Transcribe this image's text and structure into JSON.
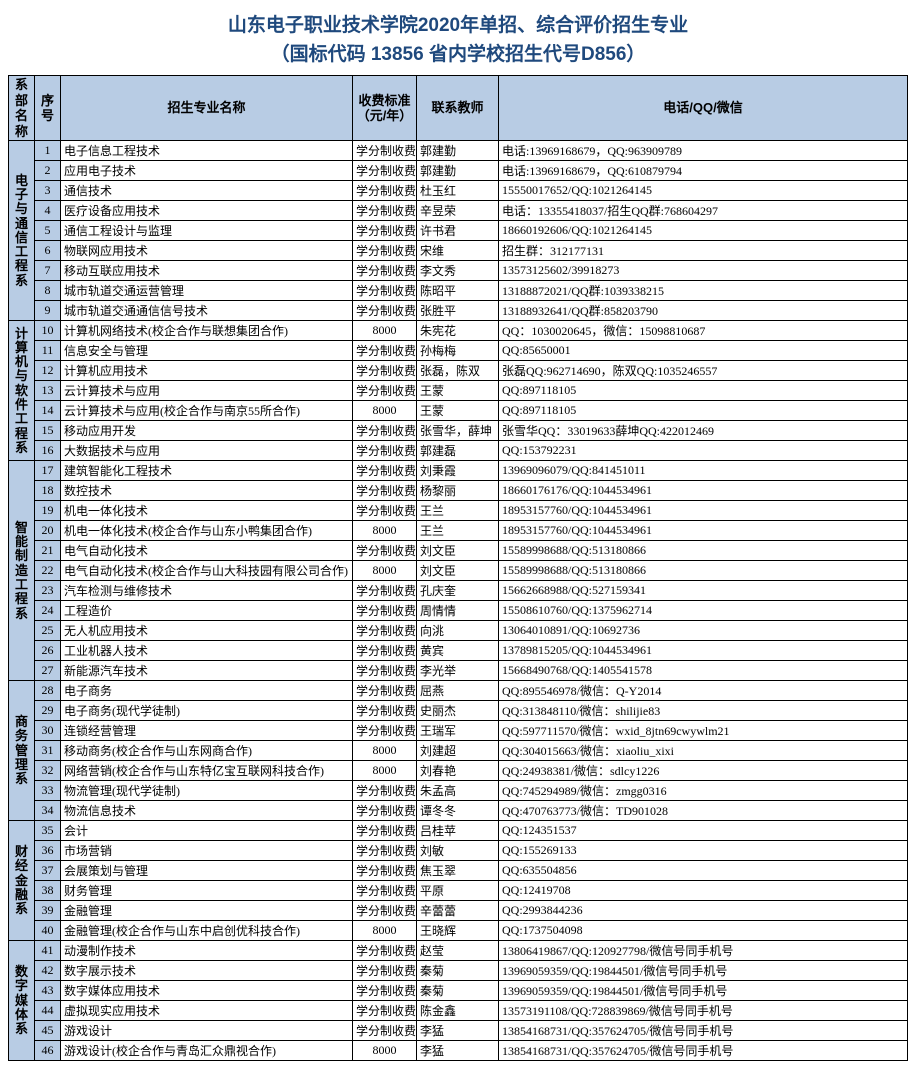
{
  "title_line1": "山东电子职业技术学院2020年单招、综合评价招生专业",
  "title_line2": "（国标代码 13856 省内学校招生代号D856）",
  "headers": {
    "dept": "系部名称",
    "num": "序号",
    "major": "招生专业名称",
    "fee": "收费标准（元/年）",
    "teacher": "联系教师",
    "contact": "电话/QQ/微信"
  },
  "departments": [
    {
      "name": "电子与通信工程系",
      "rows": [
        {
          "n": "1",
          "major": "电子信息工程技术",
          "fee": "学分制收费",
          "teacher": "郭建勤",
          "contact": "电话:13969168679，QQ:963909789"
        },
        {
          "n": "2",
          "major": "应用电子技术",
          "fee": "学分制收费",
          "teacher": "郭建勤",
          "contact": "电话:13969168679，QQ:610879794"
        },
        {
          "n": "3",
          "major": "通信技术",
          "fee": "学分制收费",
          "teacher": "杜玉红",
          "contact": "15550017652/QQ:1021264145"
        },
        {
          "n": "4",
          "major": "医疗设备应用技术",
          "fee": "学分制收费",
          "teacher": "辛昱荣",
          "contact": "电话：13355418037/招生QQ群:768604297"
        },
        {
          "n": "5",
          "major": "通信工程设计与监理",
          "fee": "学分制收费",
          "teacher": "许书君",
          "contact": "18660192606/QQ:1021264145"
        },
        {
          "n": "6",
          "major": "物联网应用技术",
          "fee": "学分制收费",
          "teacher": "宋维",
          "contact": "招生群：312177131"
        },
        {
          "n": "7",
          "major": "移动互联应用技术",
          "fee": "学分制收费",
          "teacher": "李文秀",
          "contact": "13573125602/39918273"
        },
        {
          "n": "8",
          "major": "城市轨道交通运营管理",
          "fee": "学分制收费",
          "teacher": "陈昭平",
          "contact": "13188872021/QQ群:1039338215"
        },
        {
          "n": "9",
          "major": "城市轨道交通通信信号技术",
          "fee": "学分制收费",
          "teacher": "张胜平",
          "contact": "13188932641/QQ群:858203790"
        }
      ]
    },
    {
      "name": "计算机与软件工程系",
      "rows": [
        {
          "n": "10",
          "major": "计算机网络技术(校企合作与联想集团合作)",
          "fee": "8000",
          "teacher": "朱宪花",
          "contact": "QQ：1030020645，微信：15098810687"
        },
        {
          "n": "11",
          "major": "信息安全与管理",
          "fee": "学分制收费",
          "teacher": "孙梅梅",
          "contact": "QQ:85650001"
        },
        {
          "n": "12",
          "major": "计算机应用技术",
          "fee": "学分制收费",
          "teacher": "张磊，陈双",
          "contact": "张磊QQ:962714690，陈双QQ:1035246557"
        },
        {
          "n": "13",
          "major": "云计算技术与应用",
          "fee": "学分制收费",
          "teacher": "王蒙",
          "contact": "QQ:897118105"
        },
        {
          "n": "14",
          "major": "云计算技术与应用(校企合作与南京55所合作)",
          "fee": "8000",
          "teacher": "王蒙",
          "contact": "QQ:897118105"
        },
        {
          "n": "15",
          "major": "移动应用开发",
          "fee": "学分制收费",
          "teacher": "张雪华，薛坤",
          "contact": "张雪华QQ：33019633薛坤QQ:422012469"
        },
        {
          "n": "16",
          "major": "大数据技术与应用",
          "fee": "学分制收费",
          "teacher": "郭建磊",
          "contact": "QQ:153792231"
        }
      ]
    },
    {
      "name": "智能制造工程系",
      "rows": [
        {
          "n": "17",
          "major": "建筑智能化工程技术",
          "fee": "学分制收费",
          "teacher": "刘秉霞",
          "contact": "13969096079/QQ:841451011"
        },
        {
          "n": "18",
          "major": "数控技术",
          "fee": "学分制收费",
          "teacher": "杨黎丽",
          "contact": "18660176176/QQ:1044534961"
        },
        {
          "n": "19",
          "major": "机电一体化技术",
          "fee": "学分制收费",
          "teacher": "王兰",
          "contact": "18953157760/QQ:1044534961"
        },
        {
          "n": "20",
          "major": "机电一体化技术(校企合作与山东小鸭集团合作)",
          "fee": "8000",
          "teacher": "王兰",
          "contact": "18953157760/QQ:1044534961"
        },
        {
          "n": "21",
          "major": "电气自动化技术",
          "fee": "学分制收费",
          "teacher": "刘文臣",
          "contact": "15589998688/QQ:513180866"
        },
        {
          "n": "22",
          "major": "电气自动化技术(校企合作与山大科技园有限公司合作)",
          "fee": "8000",
          "teacher": "刘文臣",
          "contact": "15589998688/QQ:513180866"
        },
        {
          "n": "23",
          "major": "汽车检测与维修技术",
          "fee": "学分制收费",
          "teacher": "孔庆奎",
          "contact": "15662668988/QQ:527159341"
        },
        {
          "n": "24",
          "major": "工程造价",
          "fee": "学分制收费",
          "teacher": "周情情",
          "contact": "15508610760/QQ:1375962714"
        },
        {
          "n": "25",
          "major": "无人机应用技术",
          "fee": "学分制收费",
          "teacher": "向洮",
          "contact": "13064010891/QQ:10692736"
        },
        {
          "n": "26",
          "major": "工业机器人技术",
          "fee": "学分制收费",
          "teacher": "黄宾",
          "contact": "13789815205/QQ:1044534961"
        },
        {
          "n": "27",
          "major": "新能源汽车技术",
          "fee": "学分制收费",
          "teacher": "李光举",
          "contact": "15668490768/QQ:1405541578"
        }
      ]
    },
    {
      "name": "商务管理系",
      "rows": [
        {
          "n": "28",
          "major": "电子商务",
          "fee": "学分制收费",
          "teacher": "屈燕",
          "contact": "QQ:895546978/微信：Q-Y2014"
        },
        {
          "n": "29",
          "major": "电子商务(现代学徒制)",
          "fee": "学分制收费",
          "teacher": "史丽杰",
          "contact": "QQ:313848110/微信：shilijie83"
        },
        {
          "n": "30",
          "major": "连锁经营管理",
          "fee": "学分制收费",
          "teacher": "王瑞军",
          "contact": "QQ:597711570/微信：wxid_8jtn69cwywlm21"
        },
        {
          "n": "31",
          "major": "移动商务(校企合作与山东网商合作)",
          "fee": "8000",
          "teacher": "刘建超",
          "contact": "QQ:304015663/微信：xiaoliu_xixi"
        },
        {
          "n": "32",
          "major": "网络营销(校企合作与山东特亿宝互联网科技合作)",
          "fee": "8000",
          "teacher": "刘春艳",
          "contact": "QQ:24938381/微信：sdlcy1226"
        },
        {
          "n": "33",
          "major": "物流管理(现代学徒制)",
          "fee": "学分制收费",
          "teacher": "朱孟高",
          "contact": "QQ:745294989/微信：zmgg0316"
        },
        {
          "n": "34",
          "major": "物流信息技术",
          "fee": "学分制收费",
          "teacher": "谭冬冬",
          "contact": "QQ:470763773/微信：TD901028"
        }
      ]
    },
    {
      "name": "财经金融系",
      "rows": [
        {
          "n": "35",
          "major": "会计",
          "fee": "学分制收费",
          "teacher": "吕桂苹",
          "contact": "QQ:124351537"
        },
        {
          "n": "36",
          "major": "市场营销",
          "fee": "学分制收费",
          "teacher": "刘敏",
          "contact": "QQ:155269133"
        },
        {
          "n": "37",
          "major": "会展策划与管理",
          "fee": "学分制收费",
          "teacher": "焦玉翠",
          "contact": "QQ:635504856"
        },
        {
          "n": "38",
          "major": "财务管理",
          "fee": "学分制收费",
          "teacher": "平原",
          "contact": "QQ:12419708"
        },
        {
          "n": "39",
          "major": "金融管理",
          "fee": "学分制收费",
          "teacher": "辛蕾蕾",
          "contact": "QQ:2993844236"
        },
        {
          "n": "40",
          "major": "金融管理(校企合作与山东中启创优科技合作)",
          "fee": "8000",
          "teacher": "王晓辉",
          "contact": "QQ:1737504098"
        }
      ]
    },
    {
      "name": "数字媒体系",
      "rows": [
        {
          "n": "41",
          "major": "动漫制作技术",
          "fee": "学分制收费",
          "teacher": "赵莹",
          "contact": "13806419867/QQ:120927798/微信号同手机号"
        },
        {
          "n": "42",
          "major": "数字展示技术",
          "fee": "学分制收费",
          "teacher": "秦菊",
          "contact": "13969059359/QQ:19844501/微信号同手机号"
        },
        {
          "n": "43",
          "major": "数字媒体应用技术",
          "fee": "学分制收费",
          "teacher": "秦菊",
          "contact": "13969059359/QQ:19844501/微信号同手机号"
        },
        {
          "n": "44",
          "major": "虚拟现实应用技术",
          "fee": "学分制收费",
          "teacher": "陈金鑫",
          "contact": "13573191108/QQ:728839869/微信号同手机号"
        },
        {
          "n": "45",
          "major": "游戏设计",
          "fee": "学分制收费",
          "teacher": "李猛",
          "contact": "13854168731/QQ:357624705/微信号同手机号"
        },
        {
          "n": "46",
          "major": "游戏设计(校企合作与青岛汇众鼎视合作)",
          "fee": "8000",
          "teacher": "李猛",
          "contact": "13854168731/QQ:357624705/微信号同手机号"
        }
      ]
    }
  ]
}
